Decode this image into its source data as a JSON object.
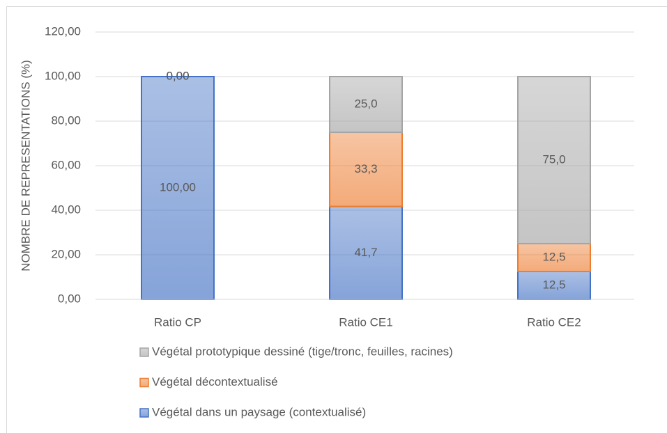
{
  "chart_data": {
    "type": "stacked_bar",
    "y_label": "NOMBRE DE REPRESENTATIONS (%)",
    "categories": [
      "Ratio CP",
      "Ratio CE1",
      "Ratio CE2"
    ],
    "series": [
      {
        "name": "Végétal dans un paysage (contextualisé)",
        "color": "#4472c4",
        "values": [
          100,
          41.7,
          12.5
        ],
        "value_labels": [
          "100,00",
          "41,7",
          "12,5"
        ]
      },
      {
        "name": "Végétal décontextualisé",
        "color": "#ed7d31",
        "values": [
          0,
          33.3,
          12.5
        ],
        "value_labels": [
          "0,00",
          "33,3",
          "12,5"
        ]
      },
      {
        "name": "Végétal prototypique dessiné (tige/tronc, feuilles, racines)",
        "color": "#a5a5a5",
        "values": [
          0,
          25.0,
          75.0
        ],
        "value_labels": [
          "0,00",
          "25,0",
          "75,0"
        ]
      }
    ],
    "ylim": [
      0,
      120
    ],
    "yticks": [
      {
        "value": 0,
        "label": "0,00"
      },
      {
        "value": 20,
        "label": "20,00"
      },
      {
        "value": 40,
        "label": "40,00"
      },
      {
        "value": 60,
        "label": "60,00"
      },
      {
        "value": 80,
        "label": "80,00"
      },
      {
        "value": 100,
        "label": "100,00"
      },
      {
        "value": 120,
        "label": "120,00"
      }
    ],
    "grid": true,
    "legend": "bottom"
  }
}
